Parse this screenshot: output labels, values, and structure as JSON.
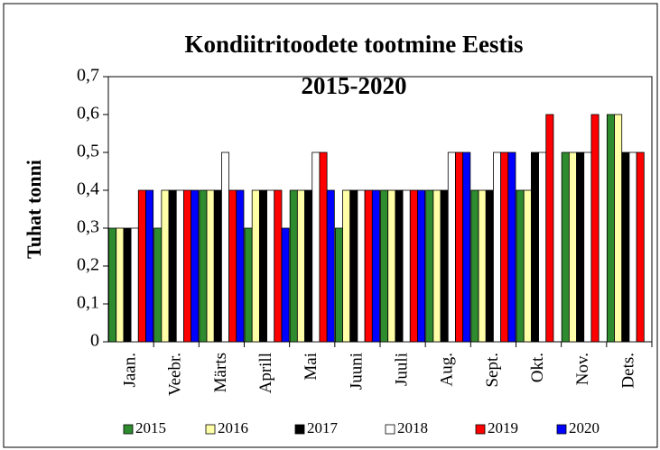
{
  "chart_data": {
    "type": "bar",
    "title": "Kondiitritoodete tootmine Eestis",
    "subtitle": "2015-2020",
    "y_label": "Tuhat tonni",
    "categories": [
      "Jaan.",
      "Veebr.",
      "Märts",
      "Aprill",
      "Mai",
      "Juuni",
      "Juuli",
      "Aug.",
      "Sept.",
      "Okt.",
      "Nov.",
      "Dets."
    ],
    "series": [
      {
        "name": "2015",
        "color": "#2e8b2e",
        "values": [
          0.3,
          0.3,
          0.4,
          0.3,
          0.4,
          0.3,
          0.4,
          0.4,
          0.4,
          0.4,
          0.5,
          0.6
        ]
      },
      {
        "name": "2016",
        "color": "#ffffa8",
        "values": [
          0.3,
          0.4,
          0.4,
          0.4,
          0.4,
          0.4,
          0.4,
          0.4,
          0.4,
          0.4,
          0.5,
          0.6
        ]
      },
      {
        "name": "2017",
        "color": "#000000",
        "values": [
          0.3,
          0.4,
          0.4,
          0.4,
          0.4,
          0.4,
          0.4,
          0.4,
          0.4,
          0.5,
          0.5,
          0.5
        ]
      },
      {
        "name": "2018",
        "color": "#ffffff",
        "values": [
          0.3,
          0.4,
          0.5,
          0.4,
          0.5,
          0.4,
          0.4,
          0.5,
          0.5,
          0.5,
          0.5,
          0.5
        ]
      },
      {
        "name": "2019",
        "color": "#ff0000",
        "values": [
          0.4,
          0.4,
          0.4,
          0.4,
          0.5,
          0.4,
          0.4,
          0.5,
          0.5,
          0.6,
          0.6,
          0.5
        ]
      },
      {
        "name": "2020",
        "color": "#0000ff",
        "values": [
          0.4,
          0.4,
          0.4,
          0.3,
          0.4,
          0.4,
          0.4,
          0.5,
          0.5,
          null,
          null,
          null
        ]
      }
    ],
    "ylim": [
      0,
      0.7
    ],
    "yticks": [
      0,
      {
        "value": 0.1,
        "label": "0,1"
      },
      {
        "value": 0.2,
        "label": "0,2"
      },
      {
        "value": 0.3,
        "label": "0,3"
      },
      {
        "value": 0.4,
        "label": "0,4"
      },
      {
        "value": 0.5,
        "label": "0,5"
      },
      {
        "value": 0.6,
        "label": "0,6"
      },
      {
        "value": 0.7,
        "label": "0,7"
      }
    ],
    "legend": "bottom"
  }
}
